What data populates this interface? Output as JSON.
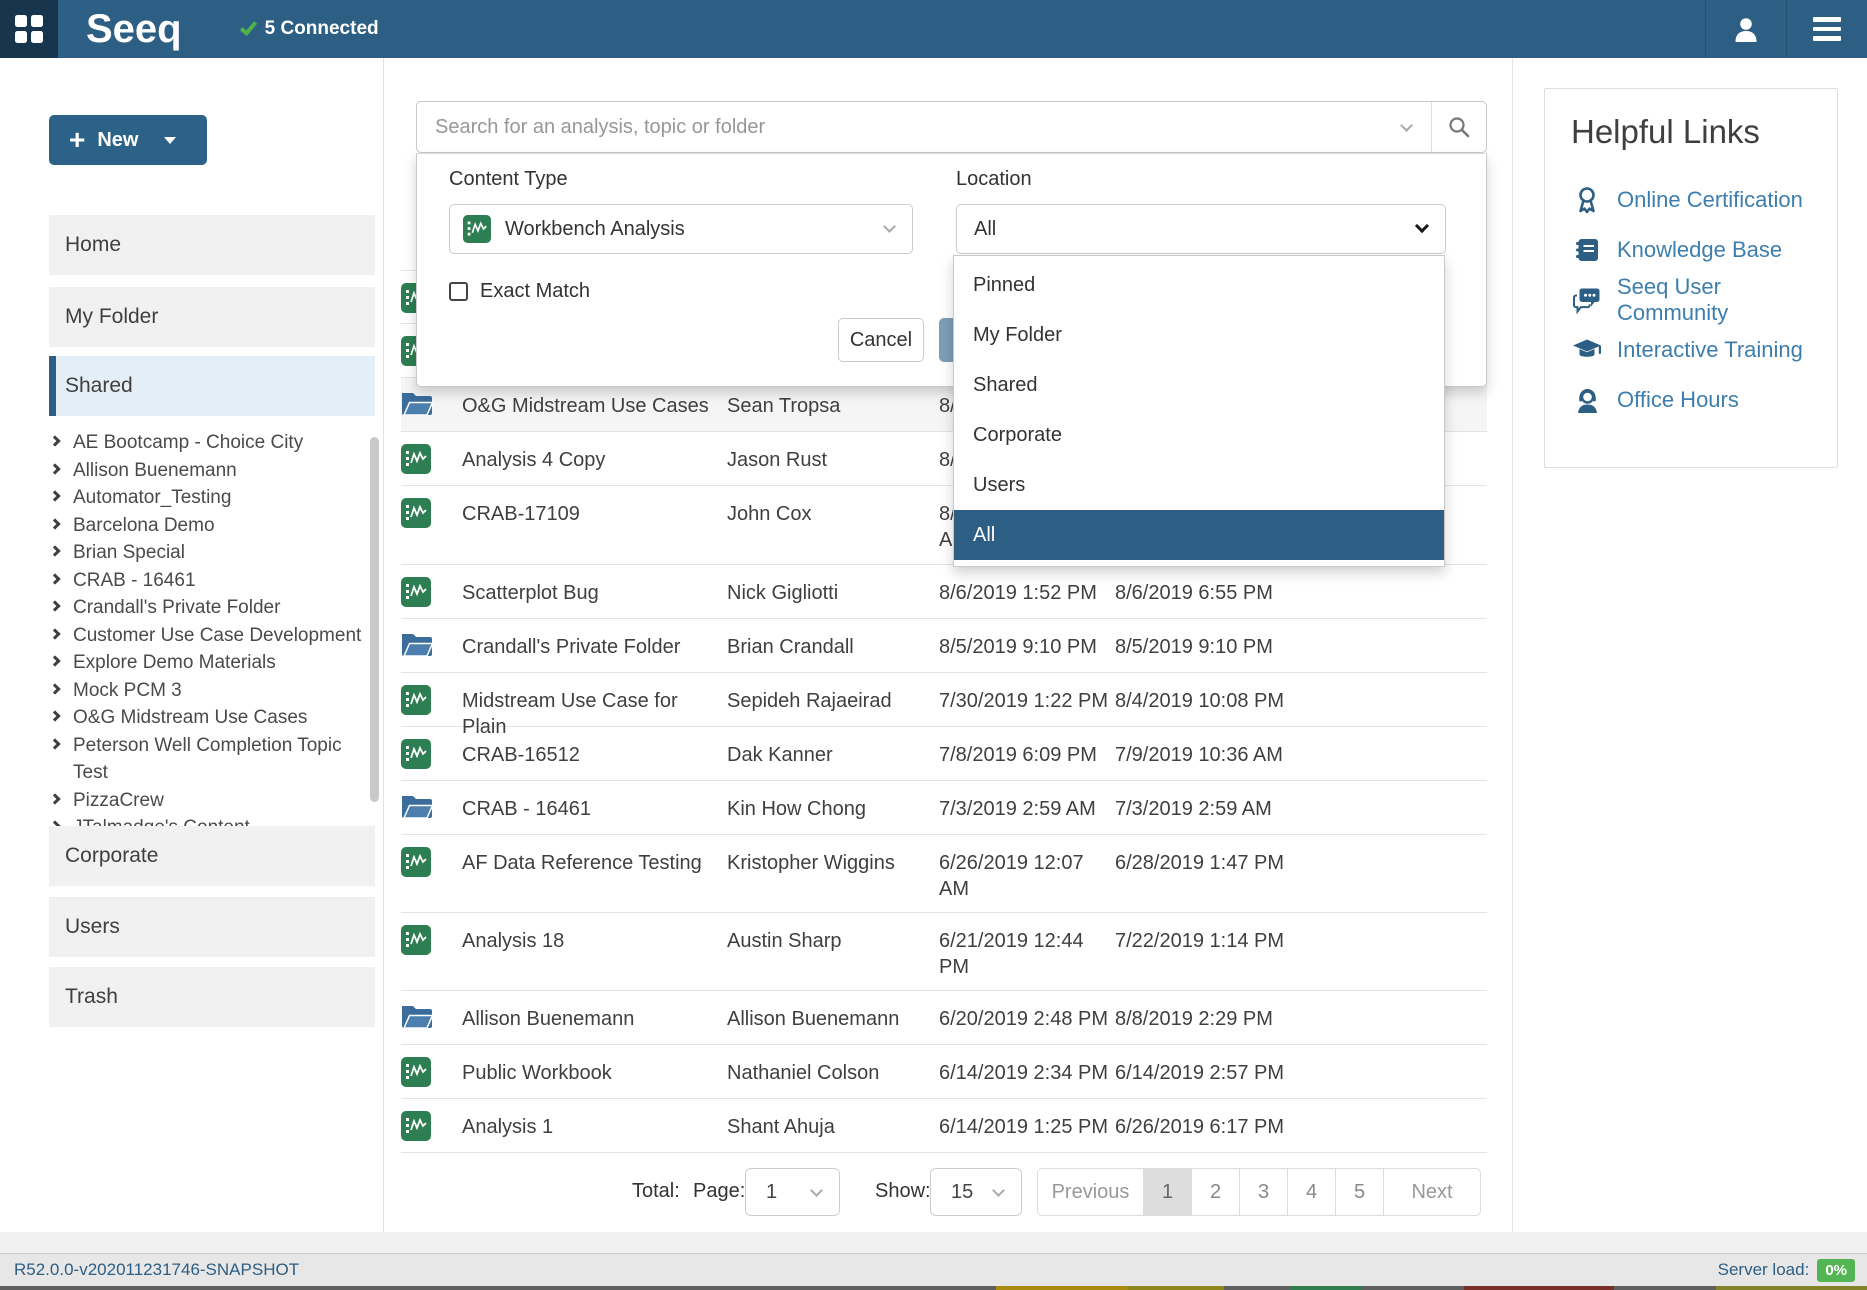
{
  "navbar": {
    "brand": "Seeq",
    "status_text": "5 Connected"
  },
  "sidebar": {
    "new_label": "New",
    "primary_items": [
      {
        "label": "Home",
        "selected": false
      },
      {
        "label": "My Folder",
        "selected": false
      },
      {
        "label": "Shared",
        "selected": true
      }
    ],
    "tree_items": [
      "AE Bootcamp - Choice City",
      "Allison Buenemann",
      "Automator_Testing",
      "Barcelona Demo",
      "Brian Special",
      "CRAB - 16461",
      "Crandall's Private Folder",
      "Customer Use Case Development",
      "Explore Demo Materials",
      "Mock PCM 3",
      "O&G Midstream Use Cases",
      "Peterson Well Completion Topic Test",
      "PizzaCrew",
      "JTalmadge's Content"
    ],
    "secondary_items": [
      "Corporate",
      "Users",
      "Trash"
    ]
  },
  "search": {
    "placeholder": "Search for an analysis, topic or folder"
  },
  "filter": {
    "content_type_label": "Content Type",
    "content_type_value": "Workbench Analysis",
    "location_label": "Location",
    "location_value": "All",
    "exact_match_label": "Exact Match",
    "cancel_label": "Cancel",
    "location_options": [
      "Pinned",
      "My Folder",
      "Shared",
      "Corporate",
      "Users",
      "All"
    ],
    "location_selected": "All"
  },
  "table": {
    "rows": [
      {
        "icon": "analysis",
        "name": "",
        "owner": "",
        "created_lines": [],
        "updated": ""
      },
      {
        "icon": "analysis",
        "name": "",
        "owner": "",
        "created_lines": [],
        "updated": ""
      },
      {
        "icon": "folder",
        "name": "O&G Midstream Use Cases",
        "owner": "Sean Tropsa",
        "created_lines": [
          "8/"
        ],
        "updated": "",
        "highlighted": true
      },
      {
        "icon": "analysis",
        "name": "Analysis 4 Copy",
        "owner": "Jason Rust",
        "created_lines": [
          "8/"
        ],
        "updated": ""
      },
      {
        "icon": "analysis",
        "name": "CRAB-17109",
        "owner": "John Cox",
        "created_lines": [
          "8/",
          "AM"
        ],
        "updated": ""
      },
      {
        "icon": "analysis",
        "name": "Scatterplot Bug",
        "owner": "Nick Gigliotti",
        "created_lines": [
          "8/6/2019 1:52 PM"
        ],
        "updated": "8/6/2019 6:55 PM"
      },
      {
        "icon": "folder",
        "name": "Crandall's Private Folder",
        "owner": "Brian Crandall",
        "created_lines": [
          "8/5/2019 9:10 PM"
        ],
        "updated": "8/5/2019 9:10 PM"
      },
      {
        "icon": "analysis",
        "name": "Midstream Use Case for Plain",
        "owner": "Sepideh Rajaeirad",
        "created_lines": [
          "7/30/2019 1:22 PM"
        ],
        "updated": "8/4/2019 10:08 PM"
      },
      {
        "icon": "analysis",
        "name": "CRAB-16512",
        "owner": "Dak Kanner",
        "created_lines": [
          "7/8/2019 6:09 PM"
        ],
        "updated": "7/9/2019 10:36 AM"
      },
      {
        "icon": "folder",
        "name": "CRAB - 16461",
        "owner": "Kin How Chong",
        "created_lines": [
          "7/3/2019 2:59 AM"
        ],
        "updated": "7/3/2019 2:59 AM"
      },
      {
        "icon": "analysis",
        "name": "AF Data Reference Testing",
        "owner": "Kristopher Wiggins",
        "created_lines": [
          "6/26/2019 12:07",
          "AM"
        ],
        "updated": "6/28/2019 1:47 PM"
      },
      {
        "icon": "analysis",
        "name": "Analysis 18",
        "owner": "Austin Sharp",
        "created_lines": [
          "6/21/2019 12:44",
          "PM"
        ],
        "updated": "7/22/2019 1:14 PM"
      },
      {
        "icon": "folder",
        "name": "Allison Buenemann",
        "owner": "Allison Buenemann",
        "created_lines": [
          "6/20/2019 2:48 PM"
        ],
        "updated": "8/8/2019 2:29 PM"
      },
      {
        "icon": "analysis",
        "name": "Public Workbook",
        "owner": "Nathaniel Colson",
        "created_lines": [
          "6/14/2019 2:34 PM"
        ],
        "updated": "6/14/2019 2:57 PM"
      },
      {
        "icon": "analysis",
        "name": "Analysis 1",
        "owner": "Shant Ahuja",
        "created_lines": [
          "6/14/2019 1:25 PM"
        ],
        "updated": "6/26/2019 6:17 PM"
      }
    ]
  },
  "pagination": {
    "total_label": "Total:",
    "page_label": "Page:",
    "page_value": "1",
    "show_label": "Show:",
    "show_value": "15",
    "previous_label": "Previous",
    "pages": [
      "1",
      "2",
      "3",
      "4",
      "5"
    ],
    "active_page": "1",
    "next_label": "Next"
  },
  "helpful_links": {
    "title": "Helpful Links",
    "links": [
      {
        "icon": "certificate",
        "label": "Online Certification"
      },
      {
        "icon": "book",
        "label": "Knowledge Base"
      },
      {
        "icon": "chat",
        "label": "Seeq User Community"
      },
      {
        "icon": "graduation-cap",
        "label": "Interactive Training"
      },
      {
        "icon": "headset",
        "label": "Office Hours"
      }
    ]
  },
  "status_bar": {
    "version": "R52.0.0-v202011231746-SNAPSHOT",
    "server_load_label": "Server load:",
    "server_load_value": "0%"
  },
  "colors": {
    "brand_blue": "#2d5e83",
    "topbar_tile": "#17364e",
    "success_green": "#53b553",
    "link_blue": "#3d7eae",
    "analysis_green": "#2d7e52",
    "folder_blue": "#3a6d9c",
    "disabled_search_button": "#7d9db6"
  }
}
